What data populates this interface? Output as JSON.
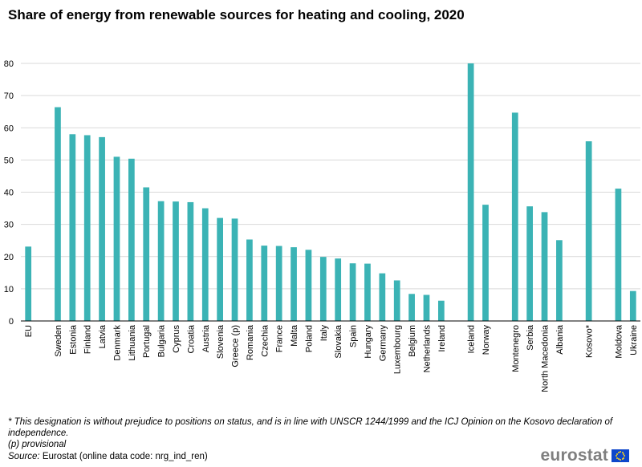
{
  "title": "Share of energy from renewable sources for heating and cooling, 2020",
  "footnotes": {
    "kosovo": "* This designation is without prejudice to positions on status, and is in line with UNSCR 1244/1999 and the ICJ Opinion on the Kosovo declaration of independence.",
    "provisional": "(p) provisional",
    "source_label": "Source:",
    "source_text": "Eurostat (online data code: nrg_ind_ren)"
  },
  "logo": {
    "wordmark": "eurostat"
  },
  "colors": {
    "bar": "#3bb3b5",
    "grid": "#d9d9d9",
    "axis": "#000000",
    "logo_text": "#7f7f7f",
    "flag_blue": "#0e47cb",
    "flag_star": "#ffd617"
  },
  "chart_data": {
    "type": "bar",
    "title": "Share of energy from renewable sources for heating and cooling, 2020",
    "xlabel": "",
    "ylabel": "",
    "ylim": [
      0,
      80
    ],
    "yticks": [
      0,
      10,
      20,
      30,
      40,
      50,
      60,
      70,
      80
    ],
    "grid": true,
    "legend": "none",
    "groups": [
      {
        "categories": [
          "EU"
        ],
        "values": [
          23.1
        ]
      },
      {
        "categories": [
          "Sweden",
          "Estonia",
          "Finland",
          "Latvia",
          "Denmark",
          "Lithuania",
          "Portugal",
          "Bulgaria",
          "Cyprus",
          "Croatia",
          "Austria",
          "Slovenia",
          "Greece (p)",
          "Romania",
          "Czechia",
          "France",
          "Malta",
          "Poland",
          "Italy",
          "Slovakia",
          "Spain",
          "Hungary",
          "Germany",
          "Luxembourg",
          "Belgium",
          "Netherlands",
          "Ireland"
        ],
        "values": [
          66.4,
          58.0,
          57.7,
          57.1,
          51.0,
          50.4,
          41.5,
          37.2,
          37.1,
          36.9,
          35.0,
          32.0,
          31.8,
          25.3,
          23.4,
          23.3,
          22.9,
          22.1,
          19.9,
          19.4,
          17.9,
          17.8,
          14.8,
          12.6,
          8.4,
          8.1,
          6.3
        ]
      },
      {
        "categories": [
          "Iceland",
          "Norway"
        ],
        "values": [
          80.0,
          36.1
        ]
      },
      {
        "categories": [
          "Montenegro",
          "Serbia",
          "North Macedonia",
          "Albania"
        ],
        "values": [
          64.7,
          35.6,
          33.8,
          25.1
        ]
      },
      {
        "categories": [
          "Kosovo*"
        ],
        "values": [
          55.8
        ]
      },
      {
        "categories": [
          "Moldova",
          "Ukraine"
        ],
        "values": [
          41.1,
          9.3
        ]
      }
    ]
  }
}
